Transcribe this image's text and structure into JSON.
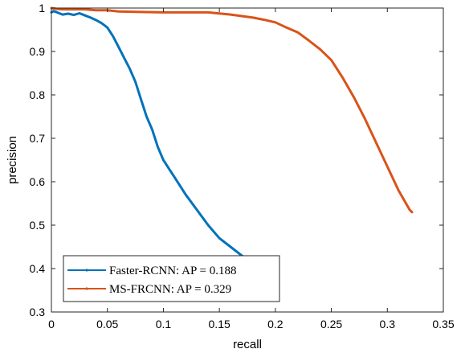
{
  "chart_data": {
    "type": "line",
    "xlabel": "recall",
    "ylabel": "precision",
    "xlim": [
      0,
      0.35
    ],
    "ylim": [
      0.3,
      1
    ],
    "xticks": [
      0,
      0.05,
      0.1,
      0.15,
      0.2,
      0.25,
      0.3,
      0.35
    ],
    "xtick_labels": [
      "0",
      "0.05",
      "0.1",
      "0.15",
      "0.2",
      "0.25",
      "0.3",
      "0.35"
    ],
    "yticks": [
      0.3,
      0.4,
      0.5,
      0.6,
      0.7,
      0.8,
      0.9,
      1
    ],
    "ytick_labels": [
      "0.3",
      "0.4",
      "0.5",
      "0.6",
      "0.7",
      "0.8",
      "0.9",
      "1"
    ],
    "grid": false,
    "legend_position": "bottom-left",
    "series": [
      {
        "name": "Faster-RCNN: AP = 0.188",
        "color": "#0072BD",
        "x": [
          0,
          0.002,
          0.005,
          0.01,
          0.015,
          0.02,
          0.025,
          0.03,
          0.035,
          0.04,
          0.045,
          0.05,
          0.055,
          0.06,
          0.065,
          0.07,
          0.075,
          0.08,
          0.085,
          0.09,
          0.095,
          0.1,
          0.105,
          0.11,
          0.12,
          0.13,
          0.14,
          0.15,
          0.16,
          0.17,
          0.176
        ],
        "y": [
          0.99,
          0.993,
          0.99,
          0.985,
          0.987,
          0.984,
          0.988,
          0.983,
          0.978,
          0.972,
          0.965,
          0.955,
          0.935,
          0.91,
          0.885,
          0.86,
          0.83,
          0.79,
          0.75,
          0.72,
          0.68,
          0.65,
          0.63,
          0.61,
          0.57,
          0.535,
          0.5,
          0.47,
          0.45,
          0.43,
          0.42
        ]
      },
      {
        "name": "MS-FRCNN: AP = 0.329",
        "color": "#D95319",
        "x": [
          0,
          0.005,
          0.01,
          0.02,
          0.03,
          0.04,
          0.05,
          0.06,
          0.08,
          0.1,
          0.12,
          0.14,
          0.16,
          0.18,
          0.19,
          0.2,
          0.21,
          0.22,
          0.23,
          0.24,
          0.25,
          0.26,
          0.27,
          0.28,
          0.29,
          0.3,
          0.31,
          0.32,
          0.322
        ],
        "y": [
          1,
          0.998,
          0.997,
          0.997,
          0.997,
          0.995,
          0.995,
          0.992,
          0.991,
          0.99,
          0.99,
          0.99,
          0.985,
          0.978,
          0.973,
          0.967,
          0.955,
          0.944,
          0.925,
          0.905,
          0.88,
          0.84,
          0.795,
          0.745,
          0.69,
          0.635,
          0.58,
          0.535,
          0.53
        ]
      }
    ]
  }
}
